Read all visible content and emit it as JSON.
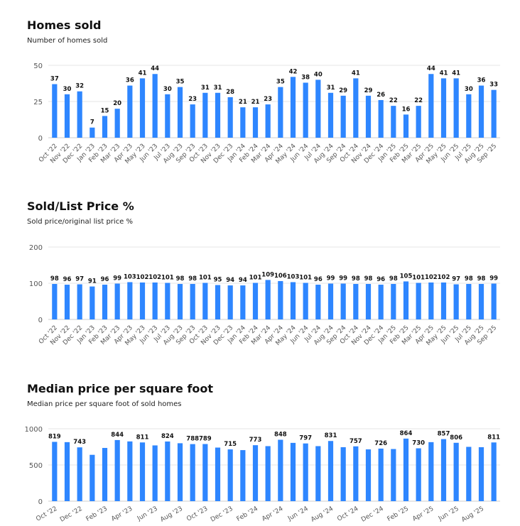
{
  "colors": {
    "bar": "#2e86ff",
    "grid": "#e6e6e6",
    "axis": "#cccccc",
    "text": "#111111",
    "tick": "#555555"
  },
  "chart_data": [
    {
      "type": "bar",
      "title": "Homes sold",
      "subtitle": "Number of homes sold",
      "xlabel": "",
      "ylabel": "",
      "ylim": [
        0,
        50
      ],
      "yticks": [
        0,
        25,
        50
      ],
      "categories": [
        "Oct '22",
        "Nov '22",
        "Dec '22",
        "Jan '23",
        "Feb '23",
        "Mar '23",
        "Apr '23",
        "May '23",
        "Jun '23",
        "Jul '23",
        "Aug '23",
        "Sep '23",
        "Oct '23",
        "Nov '23",
        "Dec '23",
        "Jan '24",
        "Feb '24",
        "Mar '24",
        "Apr '24",
        "May '24",
        "Jun '24",
        "Jul '24",
        "Aug '24",
        "Sep '24",
        "Oct '24",
        "Nov '24",
        "Dec '24",
        "Jan '25",
        "Feb '25",
        "Mar '25",
        "Apr '25",
        "May '25",
        "Jun '25",
        "Jul '25",
        "Aug '25",
        "Sep '25"
      ],
      "values": [
        37,
        30,
        32,
        7,
        15,
        20,
        36,
        41,
        44,
        30,
        35,
        23,
        31,
        31,
        28,
        21,
        21,
        23,
        35,
        42,
        38,
        40,
        31,
        29,
        41,
        29,
        26,
        22,
        16,
        22,
        44,
        41,
        41,
        30,
        36,
        33
      ],
      "labels": [
        "37",
        "30",
        "32",
        "7",
        "15",
        "20",
        "36",
        "41",
        "44",
        "30",
        "35",
        "23",
        "31",
        "31",
        "28",
        "21",
        "21",
        "23",
        "35",
        "42",
        "38",
        "40",
        "31",
        "29",
        "41",
        "29",
        "26",
        "22",
        "16",
        "22",
        "44",
        "41",
        "41",
        "30",
        "36",
        "33"
      ]
    },
    {
      "type": "bar",
      "title": "Sold/List Price %",
      "subtitle": "Sold price/original list price %",
      "xlabel": "",
      "ylabel": "",
      "ylim": [
        0,
        200
      ],
      "yticks": [
        0,
        100,
        200
      ],
      "categories": [
        "Oct '22",
        "Nov '22",
        "Dec '22",
        "Jan '23",
        "Feb '23",
        "Mar '23",
        "Apr '23",
        "May '23",
        "Jun '23",
        "Jul '23",
        "Aug '23",
        "Sep '23",
        "Oct '23",
        "Nov '23",
        "Dec '23",
        "Jan '24",
        "Feb '24",
        "Mar '24",
        "Apr '24",
        "May '24",
        "Jun '24",
        "Jul '24",
        "Aug '24",
        "Sep '24",
        "Oct '24",
        "Nov '24",
        "Dec '24",
        "Jan '25",
        "Feb '25",
        "Mar '25",
        "Apr '25",
        "May '25",
        "Jun '25",
        "Jul '25",
        "Aug '25",
        "Sep '25"
      ],
      "values": [
        98,
        96,
        97,
        91,
        96,
        99,
        103,
        102,
        102,
        101,
        98,
        98,
        101,
        95,
        94,
        94,
        101,
        109,
        106,
        103,
        101,
        96,
        99,
        99,
        98,
        98,
        96,
        98,
        105,
        101,
        102,
        102,
        97,
        98,
        98,
        99
      ],
      "labels": [
        "98",
        "96",
        "97",
        "91",
        "96",
        "99",
        "103",
        "102",
        "102",
        "101",
        "98",
        "98",
        "101",
        "95",
        "94",
        "94",
        "101",
        "109",
        "106",
        "103",
        "101",
        "96",
        "99",
        "99",
        "98",
        "98",
        "96",
        "98",
        "105",
        "101",
        "102",
        "102",
        "97",
        "98",
        "98",
        "99"
      ]
    },
    {
      "type": "bar",
      "title": "Median price per square foot",
      "subtitle": "Median price per square foot of sold homes",
      "xlabel": "",
      "ylabel": "",
      "ylim": [
        0,
        1000
      ],
      "yticks": [
        0,
        500,
        1000
      ],
      "categories": [
        "Oct '22",
        "Nov '22",
        "Dec '22",
        "Jan '23",
        "Feb '23",
        "Mar '23",
        "Apr '23",
        "May '23",
        "Jun '23",
        "Jul '23",
        "Aug '23",
        "Sep '23",
        "Oct '23",
        "Nov '23",
        "Dec '23",
        "Jan '24",
        "Feb '24",
        "Mar '24",
        "Apr '24",
        "May '24",
        "Jun '24",
        "Jul '24",
        "Aug '24",
        "Sep '24",
        "Oct '24",
        "Nov '24",
        "Dec '24",
        "Jan '25",
        "Feb '25",
        "Mar '25",
        "Apr '25",
        "May '25",
        "Jun '25",
        "Jul '25",
        "Aug '25",
        "Sep '25"
      ],
      "tick_every": 2,
      "values": [
        819,
        815,
        743,
        640,
        735,
        844,
        825,
        811,
        770,
        824,
        800,
        788,
        789,
        740,
        715,
        705,
        773,
        760,
        848,
        805,
        797,
        760,
        831,
        745,
        757,
        715,
        726,
        720,
        864,
        730,
        815,
        857,
        806,
        750,
        745,
        811
      ],
      "labels": [
        "819",
        "",
        "743",
        "",
        "",
        "844",
        "",
        "811",
        "",
        "824",
        "",
        "788",
        "789",
        "",
        "715",
        "",
        "773",
        "",
        "848",
        "",
        "797",
        "",
        "831",
        "",
        "757",
        "",
        "726",
        "",
        "864",
        "730",
        "",
        "857",
        "806",
        "",
        "",
        "811"
      ]
    }
  ]
}
